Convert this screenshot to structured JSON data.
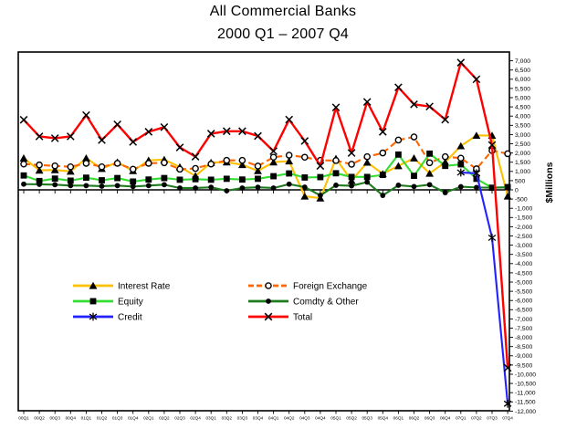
{
  "title": "All Commercial Banks",
  "subtitle": "2000 Q1 – 2007 Q4",
  "chart_data": {
    "type": "line",
    "title": "All Commercial Banks",
    "subtitle": "2000 Q1 – 2007 Q4",
    "xlabel": "",
    "ylabel": "$Millions",
    "ylim": [
      -12000,
      7000
    ],
    "y_tick_step": 500,
    "grid": false,
    "legend_position": "inside-lower-left",
    "categories": [
      "00Q1",
      "00Q2",
      "00Q3",
      "00Q4",
      "01Q1",
      "01Q2",
      "01Q3",
      "01Q4",
      "02Q1",
      "02Q2",
      "02Q3",
      "02Q4",
      "03Q1",
      "03Q2",
      "03Q3",
      "03Q4",
      "04Q1",
      "04Q2",
      "04Q3",
      "04Q4",
      "05Q1",
      "05Q2",
      "05Q3",
      "05Q4",
      "06Q1",
      "06Q2",
      "06Q3",
      "06Q4",
      "07Q1",
      "07Q2",
      "07Q3",
      "07Q4"
    ],
    "series": [
      {
        "name": "Interest Rate",
        "color": "#FFC000",
        "marker": "triangle",
        "line_style": "solid",
        "values": [
          1720,
          1060,
          1080,
          1000,
          1720,
          1150,
          1500,
          1030,
          1600,
          1640,
          1240,
          760,
          1480,
          1500,
          1360,
          1030,
          1500,
          1560,
          -350,
          -450,
          1700,
          500,
          1490,
          870,
          1300,
          1720,
          890,
          1500,
          2380,
          2950,
          2950,
          -350
        ]
      },
      {
        "name": "Foreign Exchange",
        "color": "#FF6600",
        "marker": "circle-open",
        "line_style": "dashed",
        "values": [
          1400,
          1350,
          1300,
          1250,
          1440,
          1250,
          1440,
          1120,
          1440,
          1470,
          1120,
          1160,
          1400,
          1600,
          1600,
          1290,
          1770,
          1880,
          1770,
          1600,
          1590,
          1390,
          1800,
          2000,
          2700,
          2870,
          1470,
          1800,
          1720,
          1140,
          2130,
          1960
        ]
      },
      {
        "name": "Equity",
        "color": "#33DD33",
        "marker": "square",
        "line_style": "solid",
        "values": [
          780,
          480,
          610,
          500,
          660,
          520,
          640,
          450,
          560,
          640,
          550,
          580,
          550,
          600,
          560,
          600,
          740,
          890,
          670,
          690,
          900,
          700,
          700,
          810,
          1915,
          760,
          1965,
          1300,
          1385,
          600,
          115,
          150
        ]
      },
      {
        "name": "Comdty & Other",
        "color": "#1E7B1E",
        "marker": "circle",
        "line_style": "solid",
        "values": [
          310,
          300,
          280,
          230,
          230,
          200,
          230,
          180,
          230,
          280,
          100,
          100,
          140,
          -50,
          100,
          140,
          100,
          310,
          150,
          -300,
          250,
          220,
          420,
          -300,
          250,
          180,
          280,
          -150,
          170,
          130,
          120,
          130
        ]
      },
      {
        "name": "Credit",
        "color": "#2222FF",
        "marker": "asterisk",
        "line_style": "solid",
        "values": [
          null,
          null,
          null,
          null,
          null,
          null,
          null,
          null,
          null,
          null,
          null,
          null,
          null,
          null,
          null,
          null,
          null,
          null,
          null,
          null,
          null,
          null,
          null,
          null,
          null,
          null,
          null,
          null,
          940,
          900,
          -2600,
          -11600
        ]
      },
      {
        "name": "Total",
        "color": "#FF0000",
        "marker": "x",
        "line_style": "solid",
        "values": [
          3800,
          2900,
          2800,
          2900,
          4050,
          2700,
          3550,
          2600,
          3150,
          3400,
          2300,
          1800,
          3050,
          3180,
          3180,
          2920,
          2100,
          3810,
          2650,
          1300,
          4470,
          2000,
          4770,
          3150,
          5560,
          4640,
          4520,
          3810,
          6900,
          6000,
          2430,
          -9650
        ]
      }
    ],
    "legend_columns": [
      [
        0,
        2,
        4
      ],
      [
        1,
        3,
        5
      ]
    ]
  }
}
